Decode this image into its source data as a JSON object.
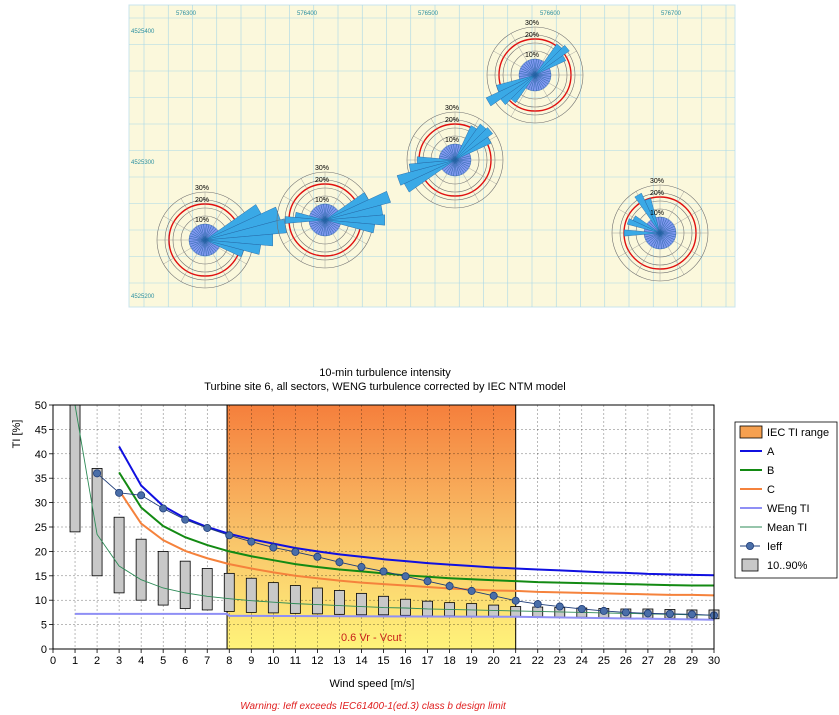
{
  "map": {
    "x_ticks": [
      "576300",
      "576400",
      "576500",
      "576600",
      "576700"
    ],
    "y_ticks": [
      "4525400",
      "4525300",
      "4525200"
    ],
    "rose_labels": [
      "30%",
      "20%",
      "10%"
    ],
    "colors": {
      "background": "#fbf8dc",
      "grid": "#a8d8e8",
      "rose_fill": "#3aa9e6",
      "rose_center": "#7f97ef",
      "limit_circle": "#e01010"
    }
  },
  "chart_data": {
    "type": "line",
    "title": "10-min turbulence intensity",
    "subtitle": "Turbine site 6, all sectors, WENG turbulence corrected by IEC NTM model",
    "xlabel": "Wind speed [m/s]",
    "ylabel": "TI [%]",
    "xlim": [
      0,
      30
    ],
    "ylim": [
      0,
      50
    ],
    "x_ticks": [
      "0",
      "1",
      "2",
      "3",
      "4",
      "5",
      "6",
      "7",
      "8",
      "9",
      "10",
      "11",
      "12",
      "13",
      "14",
      "15",
      "16",
      "17",
      "18",
      "19",
      "20",
      "21",
      "22",
      "23",
      "24",
      "25",
      "26",
      "27",
      "28",
      "29",
      "30"
    ],
    "y_ticks": [
      "0",
      "5",
      "10",
      "15",
      "20",
      "25",
      "30",
      "35",
      "40",
      "45",
      "50"
    ],
    "grid": true,
    "iec_range": {
      "x_start": 7.9,
      "x_end": 21,
      "label": "0.6 Vr - Vcut"
    },
    "series": [
      {
        "name": "A",
        "color": "#1010e0",
        "x": [
          3,
          4,
          5,
          6,
          7,
          8,
          9,
          10,
          11,
          12,
          13,
          14,
          15,
          16,
          17,
          18,
          19,
          20,
          21,
          22,
          23,
          24,
          25,
          26,
          27,
          28,
          29,
          30
        ],
        "y": [
          41.5,
          33.5,
          29.3,
          26.8,
          25.0,
          23.6,
          22.5,
          21.6,
          20.7,
          20.0,
          19.4,
          18.9,
          18.4,
          18.0,
          17.6,
          17.3,
          17.0,
          16.7,
          16.5,
          16.3,
          16.1,
          15.9,
          15.7,
          15.6,
          15.4,
          15.3,
          15.2,
          15.1
        ]
      },
      {
        "name": "B",
        "color": "#138a13",
        "x": [
          3,
          4,
          5,
          6,
          7,
          8,
          9,
          10,
          11,
          12,
          13,
          14,
          15,
          16,
          17,
          18,
          19,
          20,
          21,
          22,
          23,
          24,
          25,
          26,
          27,
          28,
          29,
          30
        ],
        "y": [
          36.2,
          29.0,
          25.2,
          22.9,
          21.3,
          20.0,
          19.0,
          18.2,
          17.4,
          16.8,
          16.3,
          15.9,
          15.5,
          15.1,
          14.8,
          14.5,
          14.3,
          14.1,
          13.9,
          13.7,
          13.6,
          13.5,
          13.4,
          13.3,
          13.2,
          13.1,
          13.0,
          13.0
        ]
      },
      {
        "name": "C",
        "color": "#f5823c",
        "x": [
          3,
          4,
          5,
          6,
          7,
          8,
          9,
          10,
          11,
          12,
          13,
          14,
          15,
          16,
          17,
          18,
          19,
          20,
          21,
          22,
          23,
          24,
          25,
          26,
          27,
          28,
          29,
          30
        ],
        "y": [
          32.5,
          25.7,
          22.3,
          20.1,
          18.6,
          17.4,
          16.5,
          15.7,
          15.0,
          14.5,
          14.0,
          13.6,
          13.3,
          13.0,
          12.7,
          12.4,
          12.2,
          12.0,
          11.9,
          11.7,
          11.6,
          11.5,
          11.4,
          11.3,
          11.2,
          11.1,
          11.1,
          11.0
        ]
      },
      {
        "name": "WEng TI",
        "color": "#8f8ff5",
        "x": [
          1,
          7.9,
          8,
          21,
          30
        ],
        "y": [
          7.2,
          7.2,
          6.8,
          6.6,
          6.0
        ]
      },
      {
        "name": "Mean TI",
        "color": "#2e8b57",
        "x": [
          1,
          2,
          3,
          4,
          5,
          6,
          7,
          8,
          9,
          10,
          11,
          12,
          13,
          14,
          15,
          16,
          17,
          18,
          19,
          20,
          21,
          22,
          23,
          24,
          25,
          26,
          27,
          28,
          29,
          30
        ],
        "y": [
          50,
          23.5,
          17.0,
          14.2,
          12.5,
          11.5,
          10.8,
          10.3,
          9.9,
          9.6,
          9.3,
          9.1,
          8.9,
          8.7,
          8.5,
          8.4,
          8.2,
          8.1,
          8.0,
          7.9,
          7.8,
          7.7,
          7.6,
          7.5,
          7.4,
          7.3,
          7.2,
          7.1,
          7.0,
          6.9
        ]
      },
      {
        "name": "Ieff",
        "color": "#1e3c78",
        "marker": "circle",
        "x": [
          2,
          3,
          4,
          5,
          6,
          7,
          8,
          9,
          10,
          11,
          12,
          13,
          14,
          15,
          16,
          17,
          18,
          19,
          20,
          21,
          22,
          23,
          24,
          25,
          26,
          27,
          28,
          29,
          30
        ],
        "y": [
          36.0,
          32.0,
          31.5,
          28.8,
          26.5,
          24.8,
          23.3,
          22.0,
          20.8,
          19.9,
          18.9,
          17.8,
          16.8,
          15.9,
          14.9,
          13.9,
          12.9,
          11.9,
          10.9,
          9.9,
          9.2,
          8.7,
          8.2,
          7.8,
          7.5,
          7.3,
          7.2,
          7.1,
          6.9
        ]
      }
    ],
    "boxes": {
      "name": "10..90%",
      "x": [
        1,
        2,
        3,
        4,
        5,
        6,
        7,
        8,
        9,
        10,
        11,
        12,
        13,
        14,
        15,
        16,
        17,
        18,
        19,
        20,
        21,
        22,
        23,
        24,
        25,
        26,
        27,
        28,
        29,
        30
      ],
      "low": [
        24,
        15,
        11.5,
        10,
        9,
        8.3,
        8,
        7.7,
        7.5,
        7.4,
        7.3,
        7.2,
        7.1,
        7,
        7,
        6.9,
        6.8,
        6.8,
        6.7,
        6.7,
        6.6,
        6.6,
        6.5,
        6.5,
        6.4,
        6.4,
        6.3,
        6.3,
        6.2,
        6.2
      ],
      "high": [
        50,
        37,
        27,
        22.5,
        20,
        18,
        16.5,
        15.5,
        14.5,
        13.6,
        13,
        12.5,
        12,
        11.4,
        10.8,
        10.2,
        9.8,
        9.5,
        9.3,
        9.0,
        8.7,
        8.6,
        8.5,
        8.4,
        8.3,
        8.2,
        8.2,
        8.1,
        8.0,
        8.0
      ]
    },
    "legend": [
      {
        "label": "IEC TI range",
        "kind": "swatch",
        "color": "#f5a050"
      },
      {
        "label": "A",
        "kind": "line",
        "color": "#1010e0"
      },
      {
        "label": "B",
        "kind": "line",
        "color": "#138a13"
      },
      {
        "label": "C",
        "kind": "line",
        "color": "#f5823c"
      },
      {
        "label": "WEng TI",
        "kind": "line",
        "color": "#8f8ff5"
      },
      {
        "label": "Mean TI",
        "kind": "line",
        "color": "#2e8b57"
      },
      {
        "label": "Ieff",
        "kind": "marker",
        "color": "#1e3c78"
      },
      {
        "label": "10..90%",
        "kind": "box",
        "color": "#c8c8c8"
      }
    ],
    "legend_position": "right",
    "warning": "Warning: Ieff exceeds IEC61400-1(ed.3) class b design limit"
  }
}
